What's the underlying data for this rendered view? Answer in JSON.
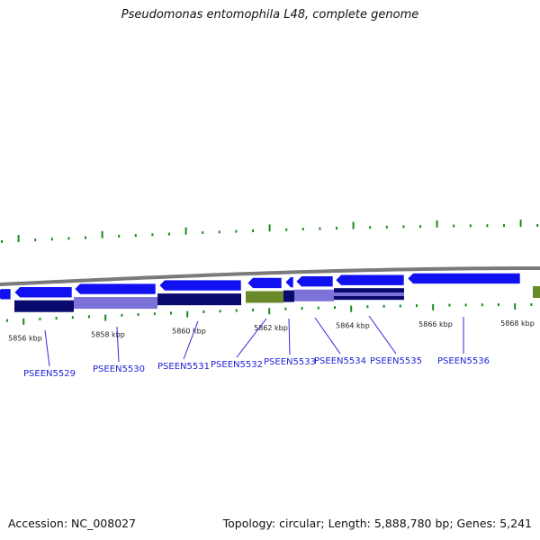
{
  "title": "Pseudomonas entomophila L48, complete genome",
  "footer": {
    "accession": "Accession: NC_008027",
    "summary": "Topology: circular; Length: 5,888,780 bp; Genes: 5,241"
  },
  "colors": {
    "backbone": "#7a7a7a",
    "gene_fwd": "#1010f0",
    "gene_dark": "#0a0a6e",
    "gene_light": "#7d72d8",
    "gene_green": "#6a8a2a",
    "tick_green": "#1a8a1a",
    "label_blue": "#1f1fd6",
    "leader_blue": "#2a2ad8",
    "scale_text": "#222222"
  },
  "scale_labels": [
    "5856 kbp",
    "5858 kbp",
    "5860 kbp",
    "5862 kbp",
    "5864 kbp",
    "5866 kbp",
    "5868 kbp"
  ],
  "gene_labels": [
    "PSEEN5529",
    "PSEEN5530",
    "PSEEN5531",
    "PSEEN5532",
    "PSEEN5533",
    "PSEEN5534",
    "PSEEN5535",
    "PSEEN5536"
  ]
}
